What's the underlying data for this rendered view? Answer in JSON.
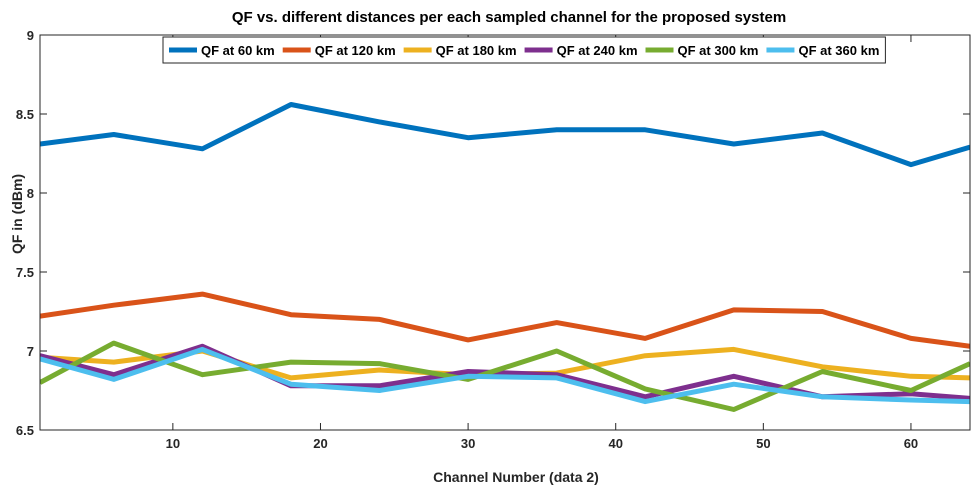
{
  "chart_data": {
    "type": "line",
    "title": "QF vs. different distances per each sampled channel for the proposed system",
    "xlabel": "Channel Number (data 2)",
    "ylabel": "QF in (dBm)",
    "xlim": [
      1,
      64
    ],
    "ylim": [
      6.5,
      9
    ],
    "xticks": [
      10,
      20,
      30,
      40,
      50,
      60
    ],
    "yticks": [
      6.5,
      7,
      7.5,
      8,
      8.5,
      9
    ],
    "ytick_labels": [
      "6.5",
      "7",
      "7.5",
      "8",
      "8.5",
      "9"
    ],
    "legend_position": "top",
    "grid": false,
    "x": [
      1,
      6,
      12,
      18,
      24,
      30,
      36,
      42,
      48,
      54,
      60,
      64
    ],
    "series": [
      {
        "name": "QF at 60 km",
        "color": "#0072BD",
        "values": [
          8.31,
          8.37,
          8.28,
          8.56,
          8.45,
          8.35,
          8.4,
          8.4,
          8.31,
          8.38,
          8.18,
          8.29
        ]
      },
      {
        "name": "QF at 120 km",
        "color": "#D95319",
        "values": [
          7.22,
          7.29,
          7.36,
          7.23,
          7.2,
          7.07,
          7.18,
          7.08,
          7.26,
          7.25,
          7.08,
          7.03
        ]
      },
      {
        "name": "QF at 180 km",
        "color": "#EDB120",
        "values": [
          6.96,
          6.93,
          7.0,
          6.83,
          6.88,
          6.85,
          6.86,
          6.97,
          7.01,
          6.9,
          6.84,
          6.83
        ]
      },
      {
        "name": "QF at 240 km",
        "color": "#7E2F8E",
        "values": [
          6.97,
          6.85,
          7.03,
          6.78,
          6.78,
          6.87,
          6.85,
          6.71,
          6.84,
          6.71,
          6.73,
          6.7
        ]
      },
      {
        "name": "QF at 300 km",
        "color": "#77AC30",
        "values": [
          6.8,
          7.05,
          6.85,
          6.93,
          6.92,
          6.82,
          7.0,
          6.76,
          6.63,
          6.87,
          6.75,
          6.92
        ]
      },
      {
        "name": "QF at 360 km",
        "color": "#4DBEEE",
        "values": [
          6.95,
          6.82,
          7.01,
          6.79,
          6.75,
          6.84,
          6.83,
          6.68,
          6.79,
          6.71,
          6.69,
          6.68
        ]
      }
    ]
  }
}
